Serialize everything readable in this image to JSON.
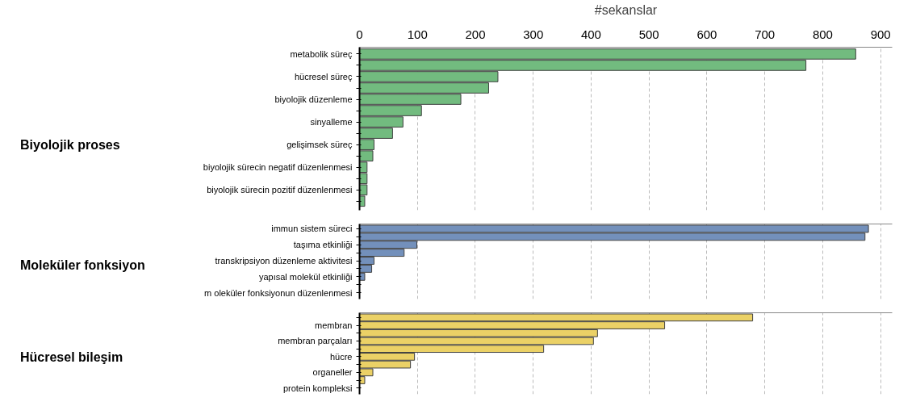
{
  "chart_data": [
    {
      "type": "bar",
      "orientation": "horizontal",
      "xlabel": "#sekanslar",
      "ylabel": "Biyolojik proses",
      "categories": [
        "metabolik süreç",
        null,
        "hücresel süreç",
        null,
        "biyolojik düzenleme",
        null,
        "sinyalleme",
        null,
        "gelişimsek süreç",
        null,
        "biyolojik sürecin negatif düzenlenmesi",
        null,
        "biyolojik sürecin pozitif düzenlenmesi",
        null
      ],
      "values": [
        857,
        771,
        239,
        223,
        175,
        107,
        75,
        57,
        25,
        23,
        13,
        13,
        13,
        9
      ],
      "color": "#72bb7f",
      "xlim": [
        0,
        920
      ],
      "xticks": [
        0,
        100,
        200,
        300,
        400,
        500,
        600,
        700,
        800,
        900
      ],
      "grid": "x"
    },
    {
      "type": "bar",
      "orientation": "horizontal",
      "ylabel": "Moleküler fonksiyon",
      "categories": [
        "immun sistem süreci",
        null,
        "taşıma etkinliği",
        null,
        "transkripsiyon düzenleme aktivitesi",
        null,
        "yapısal molekül etkinliği",
        null,
        "m oleküler fonksiyonun düzenlenmesi"
      ],
      "values": [
        879,
        873,
        99,
        77,
        25,
        21,
        9,
        null,
        null
      ],
      "color": "#7390bb",
      "xlim": [
        0,
        920
      ],
      "xticks": [
        0,
        100,
        200,
        300,
        400,
        500,
        600,
        700,
        800,
        900
      ],
      "grid": "x",
      "tick_labels": "y"
    },
    {
      "type": "bar",
      "orientation": "horizontal",
      "ylabel": "Hücresel bileşim",
      "categories": [
        null,
        "membran",
        null,
        "membran parçaları",
        null,
        "hücre",
        null,
        "organeller",
        null,
        "protein kompleksi"
      ],
      "values": [
        679,
        527,
        411,
        404,
        318,
        95,
        88,
        23,
        9,
        null
      ],
      "color": "#ebd166",
      "xlim": [
        0,
        920
      ],
      "xticks": [
        0,
        100,
        200,
        300,
        400,
        500,
        600,
        700,
        800,
        900
      ],
      "grid": "x",
      "tick_labels": "y"
    }
  ]
}
